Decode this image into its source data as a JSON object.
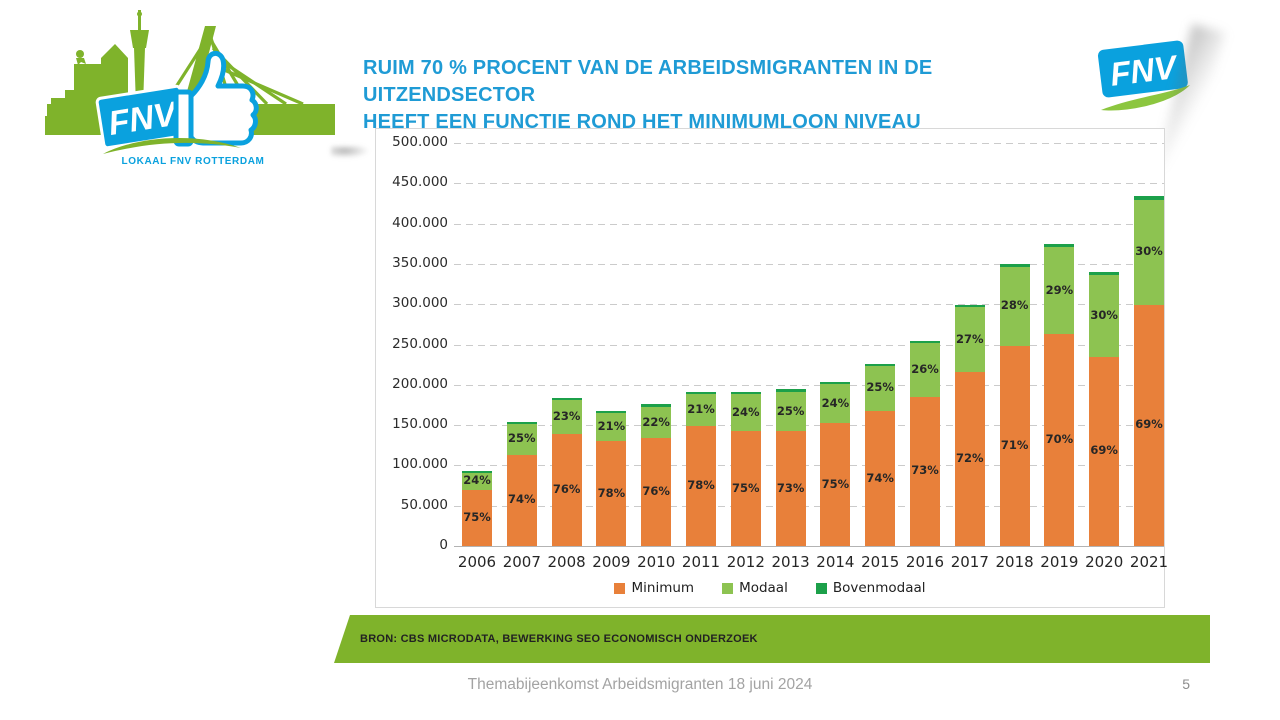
{
  "slide": {
    "title_line1": "RUIM 70 % PROCENT VAN DE ARBEIDSMIGRANTEN IN DE UITZENDSECTOR",
    "title_line2": "HEEFT EEN FUNCTIE ROND HET MINIMUMLOON NIVEAU",
    "source": "BRON: CBS MICRODATA, BEWERKING SEO ECONOMISCH ONDERZOEK",
    "footer": "Themabijeenkomst Arbeidsmigranten 18 juni 2024",
    "page_number": "5"
  },
  "logos": {
    "left": {
      "fnv_label": "FNV",
      "caption": "LOKAAL FNV ROTTERDAM"
    },
    "right": {
      "fnv_label": "FNV"
    }
  },
  "colors": {
    "title_blue": "#1F9BD5",
    "fnv_blue": "#0AA1DE",
    "fnv_green": "#7FB32B",
    "minimum_orange": "#E8803A",
    "modaal_green": "#8DC351",
    "bovenmodaal_green": "#1CA04A",
    "gridline_gray": "#CBCBCB",
    "footer_gray": "#A3A3A3"
  },
  "chart_data": {
    "type": "bar",
    "stacked": true,
    "title": "",
    "xlabel": "",
    "ylabel": "",
    "ylim": [
      0,
      500000
    ],
    "grid": "dashed-horizontal",
    "legend_position": "bottom",
    "legend": [
      "Minimum",
      "Modaal",
      "Bovenmodaal"
    ],
    "y_ticks": [
      "500.000",
      "450.000",
      "400.000",
      "350.000",
      "300.000",
      "250.000",
      "200.000",
      "150.000",
      "100.000",
      "50.000",
      "0"
    ],
    "categories": [
      "2006",
      "2007",
      "2008",
      "2009",
      "2010",
      "2011",
      "2012",
      "2013",
      "2014",
      "2015",
      "2016",
      "2017",
      "2018",
      "2019",
      "2020",
      "2021"
    ],
    "totals": [
      92000,
      153000,
      183000,
      167000,
      176000,
      191000,
      190000,
      195000,
      203000,
      226000,
      254000,
      299000,
      350000,
      375000,
      340000,
      434000
    ],
    "series": [
      {
        "name": "Minimum",
        "color": "#E8803A",
        "unit": "percent_of_total",
        "percent": [
          75,
          74,
          76,
          78,
          76,
          78,
          75,
          73,
          75,
          74,
          73,
          72,
          71,
          70,
          69,
          69
        ]
      },
      {
        "name": "Modaal",
        "color": "#8DC351",
        "unit": "percent_of_total",
        "percent": [
          24,
          25,
          23,
          21,
          22,
          21,
          24,
          25,
          24,
          25,
          26,
          27,
          28,
          29,
          30,
          30
        ]
      },
      {
        "name": "Bovenmodaal",
        "color": "#1CA04A",
        "unit": "percent_of_total",
        "percent": [
          1,
          1,
          1,
          1,
          2,
          1,
          1,
          2,
          1,
          1,
          1,
          1,
          1,
          1,
          1,
          1
        ],
        "labels_shown": false
      }
    ]
  }
}
